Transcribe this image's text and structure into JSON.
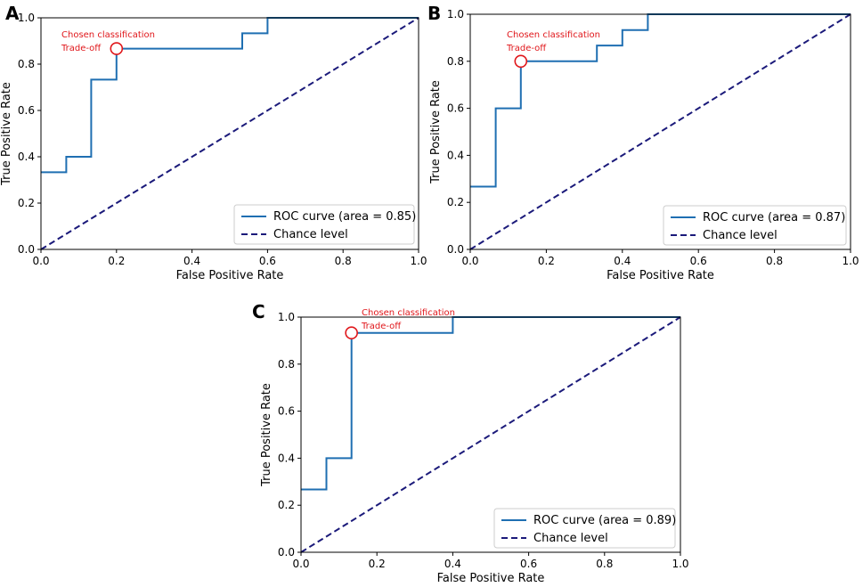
{
  "chart_data": [
    {
      "panel": "A",
      "type": "line",
      "xlabel": "False Positive Rate",
      "ylabel": "True Positive Rate",
      "xlim": [
        0,
        1
      ],
      "ylim": [
        0,
        1
      ],
      "ticks": [
        "0.0",
        "0.2",
        "0.4",
        "0.6",
        "0.8",
        "1.0"
      ],
      "series": [
        {
          "name": "ROC curve (area = 0.85)",
          "color": "#1f6fb2",
          "style": "solid",
          "points": [
            [
              0,
              0.333
            ],
            [
              0.067,
              0.333
            ],
            [
              0.067,
              0.4
            ],
            [
              0.133,
              0.4
            ],
            [
              0.133,
              0.733
            ],
            [
              0.2,
              0.733
            ],
            [
              0.2,
              0.867
            ],
            [
              0.533,
              0.867
            ],
            [
              0.533,
              0.933
            ],
            [
              0.6,
              0.933
            ],
            [
              0.6,
              1.0
            ],
            [
              1.0,
              1.0
            ]
          ]
        },
        {
          "name": "Chance level",
          "color": "#1b1a7a",
          "style": "dashed",
          "points": [
            [
              0,
              0
            ],
            [
              1,
              1
            ]
          ]
        }
      ],
      "marker": {
        "x": 0.2,
        "y": 0.867,
        "color": "#e0161a"
      },
      "annotation": [
        "Chosen classification",
        "Trade-off"
      ]
    },
    {
      "panel": "B",
      "type": "line",
      "xlabel": "False Positive Rate",
      "ylabel": "True Positive Rate",
      "xlim": [
        0,
        1
      ],
      "ylim": [
        0,
        1
      ],
      "ticks": [
        "0.0",
        "0.2",
        "0.4",
        "0.6",
        "0.8",
        "1.0"
      ],
      "series": [
        {
          "name": "ROC curve (area = 0.87)",
          "color": "#1f6fb2",
          "style": "solid",
          "points": [
            [
              0,
              0.267
            ],
            [
              0.067,
              0.267
            ],
            [
              0.067,
              0.6
            ],
            [
              0.133,
              0.6
            ],
            [
              0.133,
              0.8
            ],
            [
              0.333,
              0.8
            ],
            [
              0.333,
              0.867
            ],
            [
              0.4,
              0.867
            ],
            [
              0.4,
              0.933
            ],
            [
              0.467,
              0.933
            ],
            [
              0.467,
              1.0
            ],
            [
              1.0,
              1.0
            ]
          ]
        },
        {
          "name": "Chance level",
          "color": "#1b1a7a",
          "style": "dashed",
          "points": [
            [
              0,
              0
            ],
            [
              1,
              1
            ]
          ]
        }
      ],
      "marker": {
        "x": 0.133,
        "y": 0.8,
        "color": "#e0161a"
      },
      "annotation": [
        "Chosen classification",
        "Trade-off"
      ]
    },
    {
      "panel": "C",
      "type": "line",
      "xlabel": "False Positive Rate",
      "ylabel": "True Positive Rate",
      "xlim": [
        0,
        1
      ],
      "ylim": [
        0,
        1
      ],
      "ticks": [
        "0.0",
        "0.2",
        "0.4",
        "0.6",
        "0.8",
        "1.0"
      ],
      "series": [
        {
          "name": "ROC curve (area = 0.89)",
          "color": "#1f6fb2",
          "style": "solid",
          "points": [
            [
              0,
              0.267
            ],
            [
              0.067,
              0.267
            ],
            [
              0.067,
              0.4
            ],
            [
              0.133,
              0.4
            ],
            [
              0.133,
              0.933
            ],
            [
              0.4,
              0.933
            ],
            [
              0.4,
              1.0
            ],
            [
              1.0,
              1.0
            ]
          ]
        },
        {
          "name": "Chance level",
          "color": "#1b1a7a",
          "style": "dashed",
          "points": [
            [
              0,
              0
            ],
            [
              1,
              1
            ]
          ]
        }
      ],
      "marker": {
        "x": 0.133,
        "y": 0.933,
        "color": "#e0161a"
      },
      "annotation": [
        "Chosen classification",
        "Trade-off"
      ]
    }
  ]
}
